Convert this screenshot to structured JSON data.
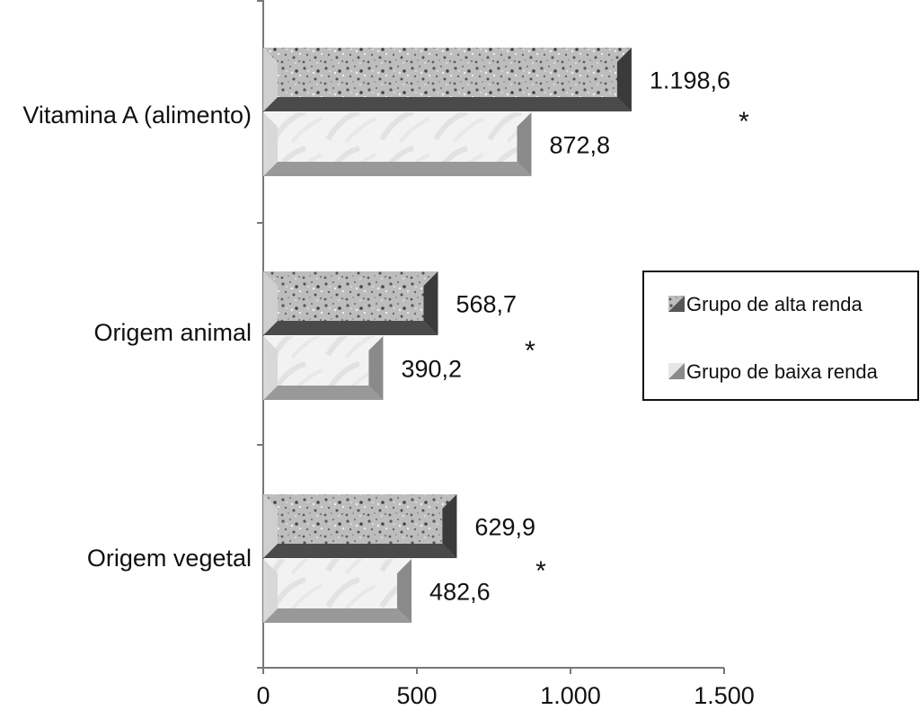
{
  "chart_data": {
    "type": "bar",
    "orientation": "horizontal",
    "categories": [
      "Vitamina A (alimento)",
      "Origem animal",
      "Origem vegetal"
    ],
    "series": [
      {
        "name": "Grupo de alta renda",
        "values": [
          1198.6,
          568.7,
          629.9
        ],
        "labels": [
          "1.198,6",
          "568,7",
          "629,9"
        ],
        "color": "#8a8a8a"
      },
      {
        "name": "Grupo de baixa renda",
        "values": [
          872.8,
          390.2,
          482.6
        ],
        "labels": [
          "872,8",
          "390,2",
          "482,6"
        ],
        "color": "#e6e6e6"
      }
    ],
    "xlim": [
      0,
      1500
    ],
    "xticks": [
      0,
      500,
      1000,
      1500
    ],
    "xtick_labels": [
      "0",
      "500",
      "1.000",
      "1.500"
    ],
    "significance_marker": "*",
    "annotations": [
      "*",
      "*",
      "*"
    ],
    "legend_placement": "right",
    "grid": false,
    "title": "",
    "xlabel": "",
    "ylabel": ""
  }
}
